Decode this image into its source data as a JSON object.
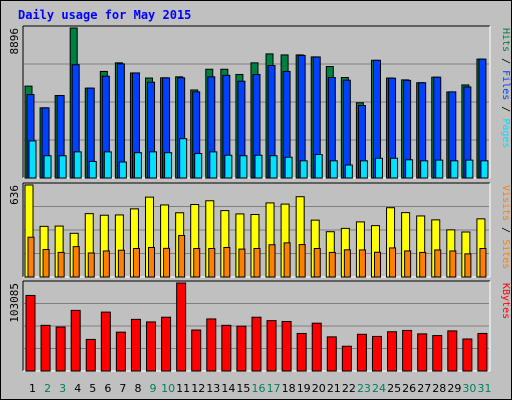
{
  "colors": {
    "background": "#c0c0c0",
    "panel": "#c0c0c0",
    "grid": "#808080",
    "hits": "#008040",
    "files": "#0040ff",
    "pages": "#00e0ff",
    "visits": "#ffff00",
    "sites": "#ff8000",
    "kbytes": "#ff0000",
    "title": "#0000ff",
    "weekday": "#000000",
    "weekend": "#00805c"
  },
  "chart_data": {
    "type": "bar",
    "title": "Daily usage for May 2015",
    "categories": [
      "1",
      "2",
      "3",
      "4",
      "5",
      "6",
      "7",
      "8",
      "9",
      "10",
      "11",
      "12",
      "13",
      "14",
      "15",
      "16",
      "17",
      "18",
      "19",
      "20",
      "21",
      "22",
      "23",
      "24",
      "25",
      "26",
      "27",
      "28",
      "29",
      "30",
      "31"
    ],
    "weekend_days": [
      "2",
      "3",
      "9",
      "10",
      "16",
      "17",
      "23",
      "24",
      "30",
      "31"
    ],
    "panels": [
      {
        "ymax_label": "8896",
        "ymax": 8896,
        "grid": true,
        "labels": [
          {
            "text": "Hits",
            "color": "#008040"
          },
          {
            "text": " / ",
            "color": "#000000"
          },
          {
            "text": "Files",
            "color": "#0040ff"
          },
          {
            "text": " / ",
            "color": "#000000"
          },
          {
            "text": "Pages",
            "color": "#00e0ff"
          }
        ],
        "series": [
          {
            "name": "Hits",
            "color": "#008040",
            "values": [
              5450,
              4160,
              4890,
              8896,
              5330,
              6320,
              6830,
              6230,
              5930,
              5940,
              6000,
              5220,
              6450,
              6450,
              6140,
              6830,
              7360,
              7300,
              7300,
              7180,
              6610,
              5960,
              4460,
              6980,
              5930,
              5820,
              5650,
              5980,
              5100,
              5520,
              7050
            ]
          },
          {
            "name": "Files",
            "color": "#0040ff",
            "values": [
              4950,
              4160,
              4890,
              6720,
              5330,
              6040,
              6770,
              6230,
              5680,
              5940,
              5940,
              5110,
              6000,
              6090,
              5740,
              6140,
              6670,
              6320,
              7270,
              7180,
              5960,
              5800,
              4300,
              6980,
              5920,
              5790,
              5650,
              5980,
              5110,
              5400,
              7050
            ]
          },
          {
            "name": "Pages",
            "color": "#00e0ff",
            "values": [
              2200,
              1320,
              1320,
              1550,
              980,
              1550,
              950,
              1500,
              1550,
              1500,
              2330,
              1450,
              1550,
              1350,
              1320,
              1350,
              1320,
              1230,
              1020,
              1390,
              1020,
              770,
              1020,
              1170,
              1170,
              1080,
              1020,
              1060,
              1020,
              1060,
              1020
            ]
          }
        ]
      },
      {
        "ymax_label": "636",
        "ymax": 636,
        "grid": true,
        "labels": [
          {
            "text": "Visits",
            "color": "#ff8000"
          },
          {
            "text": " / ",
            "color": "#000000"
          },
          {
            "text": "Sites",
            "color": "#ff8000"
          }
        ],
        "series": [
          {
            "name": "Visits",
            "color": "#ffff00",
            "values": [
              636,
              350,
              352,
              302,
              438,
              427,
              429,
              471,
              552,
              498,
              444,
              501,
              527,
              459,
              436,
              432,
              512,
              504,
              555,
              393,
              313,
              336,
              381,
              355,
              479,
              445,
              422,
              395,
              326,
              311,
              402
            ]
          },
          {
            "name": "Sites",
            "color": "#ff8000",
            "values": [
              275,
              190,
              170,
              210,
              166,
              180,
              185,
              197,
              204,
              198,
              287,
              197,
              197,
              204,
              193,
              197,
              223,
              236,
              224,
              197,
              170,
              188,
              187,
              171,
              201,
              180,
              170,
              187,
              180,
              160,
              197
            ]
          }
        ]
      },
      {
        "ymax_label": "103085",
        "ymax": 103085,
        "grid": true,
        "labels": [
          {
            "text": "KBytes",
            "color": "#ff0000"
          }
        ],
        "series": [
          {
            "name": "KBytes",
            "color": "#ff0000",
            "values": [
              88500,
              53500,
              51500,
              71000,
              37000,
              69000,
              45500,
              60500,
              57500,
              63000,
              103085,
              48000,
              61000,
              53500,
              52500,
              63000,
              59000,
              58000,
              44000,
              56000,
              40000,
              29000,
              43000,
              40500,
              46000,
              47500,
              43500,
              41500,
              47000,
              37500,
              44000
            ]
          }
        ]
      }
    ]
  }
}
